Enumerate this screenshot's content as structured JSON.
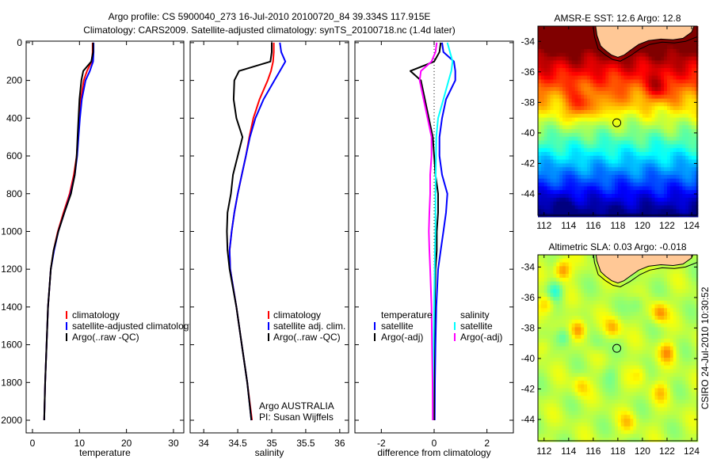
{
  "title": {
    "line1": "Argo profile: CS 5900040_273 16-Jul-2010 20100720_84 39.334S 117.915E",
    "line2": "Climatology: CARS2009. Satellite-adjusted climatology: synTS_20100718.nc (1.4d later)"
  },
  "colors": {
    "climatology": "#ff0000",
    "satellite": "#0000ff",
    "argo": "#000000",
    "sal_satellite": "#00ffff",
    "sal_argo": "#ff00ff",
    "land": "#ffc896"
  },
  "chart_data": [
    {
      "type": "line",
      "name": "temperature-profile",
      "xlabel": "temperature",
      "ylabel": "",
      "xlim": [
        -1.35,
        32.2
      ],
      "ylim": [
        2067,
        -8
      ],
      "xticks": [
        "0",
        "10",
        "20",
        "30"
      ],
      "xtick_values": [
        0,
        10,
        20,
        30
      ],
      "yticks": [
        "0",
        "200",
        "400",
        "600",
        "800",
        "1000",
        "1200",
        "1400",
        "1600",
        "1800",
        "2000"
      ],
      "ytick_values": [
        0,
        200,
        400,
        600,
        800,
        1000,
        1200,
        1400,
        1600,
        1800,
        2000
      ],
      "depth": [
        0,
        50,
        100,
        150,
        200,
        300,
        400,
        500,
        600,
        700,
        800,
        900,
        1000,
        1100,
        1200,
        1400,
        1600,
        1800,
        2000
      ],
      "series": [
        {
          "name": "climatology",
          "color": "#ff0000",
          "values": [
            12.8,
            12.8,
            12.6,
            11.6,
            10.9,
            10.3,
            10.0,
            9.7,
            9.4,
            8.8,
            7.9,
            6.6,
            5.4,
            4.5,
            3.9,
            3.3,
            3.0,
            2.7,
            2.5
          ]
        },
        {
          "name": "satellite-adjusted climatology",
          "color": "#0000ff",
          "values": [
            13.0,
            13.0,
            12.9,
            12.2,
            11.3,
            10.5,
            10.1,
            9.8,
            9.5,
            9.0,
            8.1,
            6.8,
            5.5,
            4.6,
            3.9,
            3.3,
            3.0,
            2.7,
            2.5
          ]
        },
        {
          "name": "Argo(..raw -QC)",
          "color": "#000000",
          "values": [
            12.9,
            12.9,
            12.5,
            10.8,
            10.4,
            10.0,
            9.8,
            9.6,
            9.4,
            9.0,
            8.2,
            6.8,
            5.5,
            4.5,
            3.9,
            3.3,
            3.0,
            2.7,
            2.5
          ]
        }
      ],
      "legend": [
        "climatology",
        "satellite-adjusted climatology",
        "Argo(..raw -QC)"
      ],
      "legend_placement": "lower-right"
    },
    {
      "type": "line",
      "name": "salinity-profile",
      "xlabel": "salinity",
      "xlim": [
        33.8,
        36.13
      ],
      "ylim": [
        2067,
        -8
      ],
      "xticks": [
        "34",
        "34.5",
        "35",
        "35.5",
        "36"
      ],
      "xtick_values": [
        34,
        34.5,
        35,
        35.5,
        36
      ],
      "depth": [
        0,
        50,
        100,
        150,
        200,
        300,
        400,
        500,
        600,
        700,
        800,
        900,
        1000,
        1100,
        1200,
        1400,
        1600,
        1800,
        2000
      ],
      "series": [
        {
          "name": "climatology",
          "color": "#ff0000",
          "values": [
            35.03,
            35.03,
            35.02,
            34.99,
            34.94,
            34.82,
            34.73,
            34.67,
            34.62,
            34.56,
            34.5,
            34.45,
            34.41,
            34.38,
            34.39,
            34.48,
            34.56,
            34.64,
            34.71
          ]
        },
        {
          "name": "satellite adj. clim.",
          "color": "#0000ff",
          "values": [
            35.12,
            35.14,
            35.2,
            35.12,
            35.04,
            34.88,
            34.76,
            34.68,
            34.62,
            34.56,
            34.5,
            34.45,
            34.41,
            34.38,
            34.39,
            34.48,
            34.56,
            34.64,
            34.7
          ]
        },
        {
          "name": "Argo(..raw -QC)",
          "color": "#000000",
          "values": [
            35.0,
            35.0,
            34.98,
            34.52,
            34.45,
            34.44,
            34.48,
            34.57,
            34.5,
            34.43,
            34.4,
            34.35,
            34.34,
            34.35,
            34.38,
            34.48,
            34.56,
            34.64,
            34.7
          ]
        }
      ],
      "legend": [
        "climatology",
        "satellite adj. clim.",
        "Argo(..raw -QC)"
      ],
      "annotation": [
        "Argo AUSTRALIA",
        "PI: Susan Wijffels"
      ]
    },
    {
      "type": "line",
      "name": "difference-profile",
      "xlabel": "difference from climatology",
      "xlim": [
        -3,
        3
      ],
      "ylim": [
        2067,
        -8
      ],
      "xticks": [
        "-2",
        "0",
        "2"
      ],
      "xtick_values": [
        -2,
        0,
        2
      ],
      "depth": [
        0,
        50,
        100,
        150,
        200,
        300,
        400,
        500,
        600,
        700,
        800,
        900,
        1000,
        1100,
        1200,
        1400,
        1600,
        1800,
        2000
      ],
      "series": [
        {
          "name": "temperature satellite",
          "color": "#0000ff",
          "values": [
            0.3,
            0.35,
            0.75,
            0.8,
            0.8,
            0.45,
            0.3,
            0.2,
            0.2,
            0.3,
            0.5,
            0.45,
            0.35,
            0.25,
            0.15,
            0.08,
            0.05,
            0.03,
            0.02
          ]
        },
        {
          "name": "temperature Argo(-adj)",
          "color": "#000000",
          "values": [
            0.25,
            0.2,
            0.0,
            -0.9,
            -0.5,
            -0.35,
            -0.2,
            -0.05,
            0.0,
            0.05,
            0.15,
            0.15,
            0.1,
            0.1,
            0.05,
            0.02,
            0.0,
            0.0,
            0.0
          ]
        },
        {
          "name": "salinity satellite",
          "color": "#00ffff",
          "values": [
            0.5,
            0.6,
            0.7,
            0.65,
            0.55,
            0.35,
            0.15,
            0.08,
            0.07,
            0.06,
            0.05,
            0.05,
            0.05,
            0.03,
            0.02,
            0.0,
            -0.02,
            -0.04,
            -0.05
          ]
        },
        {
          "name": "salinity Argo(-adj)",
          "color": "#ff00ff",
          "values": [
            0.1,
            0.05,
            -0.1,
            -0.5,
            -0.55,
            -0.4,
            -0.25,
            -0.1,
            -0.1,
            -0.15,
            -0.15,
            -0.18,
            -0.2,
            -0.18,
            -0.15,
            -0.1,
            -0.08,
            -0.06,
            -0.05
          ]
        }
      ],
      "legend_headers": [
        "temperature",
        "salinity"
      ],
      "legend_temperature": [
        "satellite",
        "Argo(-adj)"
      ],
      "legend_salinity": [
        "satellite",
        "Argo(-adj)"
      ]
    },
    {
      "type": "heatmap",
      "name": "sst-map",
      "title": "AMSR-E SST: 12.6 Argo: 12.8",
      "xlim": [
        111.5,
        124.45
      ],
      "ylim": [
        -45.4,
        -33.0
      ],
      "xticks": [
        "112",
        "114",
        "116",
        "118",
        "120",
        "122",
        "124"
      ],
      "xtick_values": [
        112,
        114,
        116,
        118,
        120,
        122,
        124
      ],
      "yticks": [
        "-34",
        "-36",
        "-38",
        "-40",
        "-42",
        "-44"
      ],
      "ytick_values": [
        -34,
        -36,
        -38,
        -40,
        -42,
        -44
      ],
      "float_position": [
        117.915,
        -39.334
      ]
    },
    {
      "type": "heatmap",
      "name": "sla-map",
      "title": "Altimetric SLA: 0.03 Argo: -0.018",
      "xlim": [
        111.5,
        124.45
      ],
      "ylim": [
        -45.4,
        -33.2
      ],
      "xticks": [
        "112",
        "114",
        "116",
        "118",
        "120",
        "122",
        "124"
      ],
      "xtick_values": [
        112,
        114,
        116,
        118,
        120,
        122,
        124
      ],
      "yticks": [
        "-34",
        "-36",
        "-38",
        "-40",
        "-42",
        "-44"
      ],
      "ytick_values": [
        -34,
        -36,
        -38,
        -40,
        -42,
        -44
      ],
      "float_position": [
        117.915,
        -39.334
      ]
    }
  ],
  "stamp": "CSIRO 24-Jul-2010 10:30:52"
}
